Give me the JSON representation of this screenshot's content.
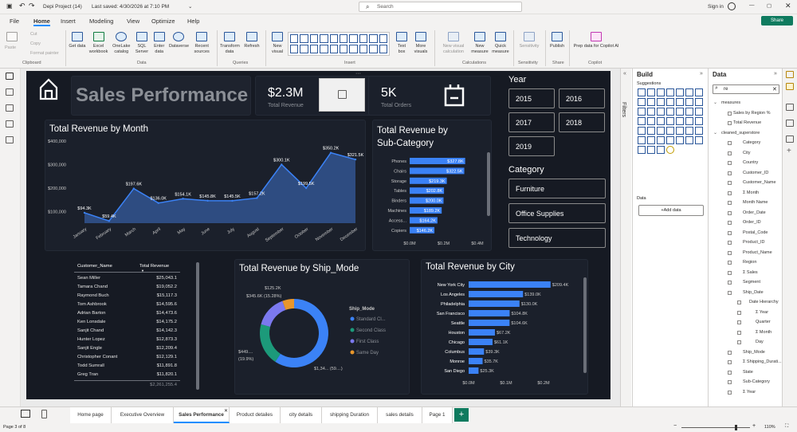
{
  "titlebar": {
    "doc_title": "Depi Project (14)",
    "saved": "Last saved: 4/30/2026 at 7:10 PM",
    "search_placeholder": "Search",
    "sign_in": "Sign in"
  },
  "menu": [
    "File",
    "Home",
    "Insert",
    "Modeling",
    "View",
    "Optimize",
    "Help"
  ],
  "share_label": "Share",
  "ribbon": {
    "clipboard": [
      "Paste",
      "Cut",
      "Copy",
      "Format painter"
    ],
    "data_items": [
      "Get data",
      "Excel workbook",
      "OneLake catalog",
      "SQL Server",
      "Enter data",
      "Dataverse",
      "Recent sources"
    ],
    "queries_items": [
      "Transform data",
      "Refresh"
    ],
    "insert_items": [
      "New visual",
      "Text box",
      "More visuals"
    ],
    "calc_items": [
      "New visual calculation",
      "New measure",
      "Quick measure"
    ],
    "sensitivity": "Sensitivity",
    "publish": "Publish",
    "copilot": "Prep data for Copilot AI",
    "groups": [
      "Clipboard",
      "Data",
      "Queries",
      "Insert",
      "Calculations",
      "Sensitivity",
      "Share",
      "Copilot"
    ]
  },
  "report": {
    "title": "Sales Performance",
    "kpi_revenue_value": "$2.3M",
    "kpi_revenue_label": "Total Revenue",
    "kpi_orders_value": "5K",
    "kpi_orders_label": "Total Orders",
    "year_label": "Year",
    "years": [
      "2015",
      "2016",
      "2017",
      "2018",
      "2019"
    ],
    "category_label": "Category",
    "categories": [
      "Furniture",
      "Office Supplies",
      "Technology"
    ],
    "month_title": "Total Revenue by Month",
    "subcat_title": "Total Revenue by Sub-Category",
    "ship_title": "Total Revenue by Ship_Mode",
    "city_title": "Total Revenue by City",
    "table": {
      "headers": [
        "Customer_Name",
        "Total Revenue"
      ],
      "rows": [
        [
          "Sean Miller",
          "$25,043.1"
        ],
        [
          "Tamara Chand",
          "$19,052.2"
        ],
        [
          "Raymond Buch",
          "$15,117.3"
        ],
        [
          "Tom Ashbrook",
          "$14,595.6"
        ],
        [
          "Adrian Barton",
          "$14,473.6"
        ],
        [
          "Ken Lonsdale",
          "$14,175.2"
        ],
        [
          "Sanjit Chand",
          "$14,142.3"
        ],
        [
          "Hunter Lopez",
          "$12,873.3"
        ],
        [
          "Sanjit Engle",
          "$12,209.4"
        ],
        [
          "Christopher Conant",
          "$12,129.1"
        ],
        [
          "Todd Sumrall",
          "$11,891.8"
        ],
        [
          "Greg Tran",
          "$11,820.1"
        ]
      ],
      "total": "$2,261,255.4"
    }
  },
  "chart_data": [
    {
      "type": "area",
      "title": "Total Revenue by Month",
      "categories": [
        "January",
        "February",
        "March",
        "April",
        "May",
        "June",
        "July",
        "August",
        "September",
        "October",
        "November",
        "December"
      ],
      "values": [
        94.3,
        59.4,
        197.6,
        136.0,
        154.1,
        145.8,
        145.5,
        157.2,
        300.1,
        199.5,
        350.2,
        321.5
      ],
      "labels": [
        "$94.3K",
        "$59.4K",
        "$197.6K",
        "$136.0K",
        "$154.1K",
        "$145.8K",
        "$145.5K",
        "$157.2K",
        "$300.1K",
        "$199.5K",
        "$350.2K",
        "$321.5K"
      ],
      "yticks": [
        "$400,000",
        "$300,000",
        "$200,000",
        "$100,000"
      ],
      "ylim": [
        50,
        400
      ]
    },
    {
      "type": "bar",
      "title": "Total Revenue by Sub-Category",
      "categories": [
        "Phones",
        "Chairs",
        "Storage",
        "Tables",
        "Binders",
        "Machines",
        "Access...",
        "Copiers"
      ],
      "values": [
        327.8,
        322.5,
        219.3,
        202.8,
        200.0,
        189.2,
        164.2,
        146.2
      ],
      "labels": [
        "$327.8K",
        "$322.5K",
        "$219.3K",
        "$202.8K",
        "$200.0K",
        "$189.2K",
        "$164.2K",
        "$146.2K"
      ],
      "xticks": [
        "$0.0M",
        "$0.2M",
        "$0.4M"
      ],
      "xlim": [
        0,
        400
      ]
    },
    {
      "type": "pie",
      "title": "Total Revenue by Ship_Mode",
      "legend_title": "Ship_Mode",
      "series": [
        {
          "name": "Standard Cl...",
          "value": 1340,
          "label": "$1,34... (59....)"
        },
        {
          "name": "Second Class",
          "value": 449,
          "label": "$449.... (19.9%)"
        },
        {
          "name": "First Class",
          "value": 345.6,
          "label": "$345.6K (15.28%)"
        },
        {
          "name": "Same Day",
          "value": 125.2,
          "label": "$125.2K (5.54%)"
        }
      ]
    },
    {
      "type": "bar",
      "title": "Total Revenue by City",
      "categories": [
        "New York City",
        "Los Angeles",
        "Philadelphia",
        "San Francisco",
        "Seattle",
        "Houston",
        "Chicago",
        "Columbus",
        "Monroe",
        "San Diego"
      ],
      "values": [
        209.4,
        139.0,
        130.0,
        104.8,
        104.6,
        67.2,
        61.1,
        39.3,
        35.7,
        25.3
      ],
      "labels": [
        "$209.4K",
        "$139.0K",
        "$130.0K",
        "$104.8K",
        "$104.6K",
        "$67.2K",
        "$61.1K",
        "$39.3K",
        "$35.7K",
        "$25.3K"
      ],
      "xticks": [
        "$0.0M",
        "$0.1M",
        "$0.2M"
      ],
      "xlim": [
        0,
        220
      ]
    }
  ],
  "colors": {
    "accent": "#118dff",
    "bar": "#3b82f6",
    "standard": "#3b82f6",
    "second": "#1c9a7a",
    "first": "#7b79ef",
    "sameday": "#e8962b"
  },
  "build": {
    "title": "Build",
    "suggestions": "Suggestions",
    "data_label": "Data",
    "add_data": "+Add data"
  },
  "filters_label": "Filters",
  "data_pane": {
    "title": "Data",
    "search_value": "re",
    "fields": [
      "measures",
      "Sales by Region %",
      "Total Revenue",
      "cleaned_superstore",
      "Category",
      "City",
      "Country",
      "Customer_ID",
      "Customer_Name",
      "Month",
      "Month Name",
      "Order_Date",
      "Order_ID",
      "Postal_Code",
      "Product_ID",
      "Product_Name",
      "Region",
      "Sales",
      "Segment",
      "Ship_Date",
      "Date Hierarchy",
      "Year",
      "Quarter",
      "Month",
      "Day",
      "Ship_Mode",
      "Shipping_Durati...",
      "State",
      "Sub-Category",
      "Year"
    ]
  },
  "tabs": [
    "Home page",
    "Executive Overview",
    "Sales Performance",
    "Product detailes",
    "city details",
    "shipping Duration",
    "sales details",
    "Page 1"
  ],
  "status": {
    "page": "Page 3 of 8",
    "zoom": "110%"
  }
}
